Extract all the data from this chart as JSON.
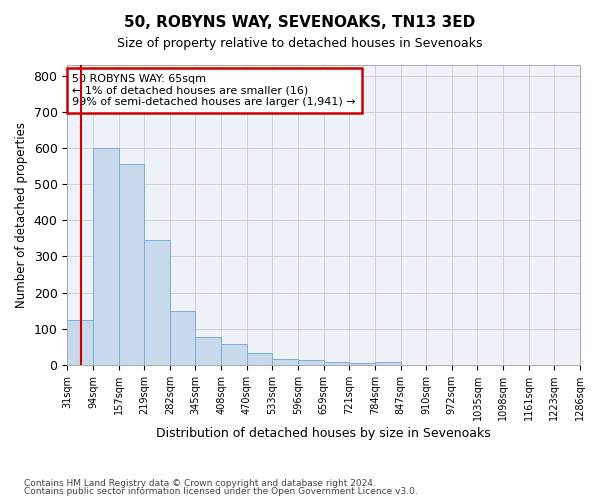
{
  "title1": "50, ROBYNS WAY, SEVENOAKS, TN13 3ED",
  "title2": "Size of property relative to detached houses in Sevenoaks",
  "xlabel": "Distribution of detached houses by size in Sevenoaks",
  "ylabel": "Number of detached properties",
  "bin_labels": [
    "31sqm",
    "94sqm",
    "157sqm",
    "219sqm",
    "282sqm",
    "345sqm",
    "408sqm",
    "470sqm",
    "533sqm",
    "596sqm",
    "659sqm",
    "721sqm",
    "784sqm",
    "847sqm",
    "910sqm",
    "972sqm",
    "1035sqm",
    "1098sqm",
    "1161sqm",
    "1223sqm",
    "1286sqm"
  ],
  "bar_values": [
    125,
    600,
    555,
    345,
    150,
    78,
    57,
    33,
    16,
    13,
    8,
    5,
    7,
    0,
    0,
    0,
    0,
    0,
    0,
    0
  ],
  "bar_color": "#c9d9ec",
  "bar_edge_color": "#7aaed6",
  "annotation_text": "50 ROBYNS WAY: 65sqm\n← 1% of detached houses are smaller (16)\n99% of semi-detached houses are larger (1,941) →",
  "annotation_box_color": "#ffffff",
  "annotation_box_edge": "#cc0000",
  "ylim": [
    0,
    830
  ],
  "yticks": [
    0,
    100,
    200,
    300,
    400,
    500,
    600,
    700,
    800
  ],
  "footer1": "Contains HM Land Registry data © Crown copyright and database right 2024.",
  "footer2": "Contains public sector information licensed under the Open Government Licence v3.0.",
  "bg_color": "#eef2f8"
}
